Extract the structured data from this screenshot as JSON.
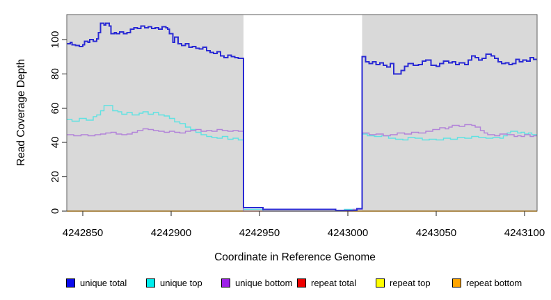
{
  "page_background": "#ffffff",
  "chart_data": {
    "type": "line",
    "style": "step-after",
    "title": "",
    "xlabel": "Coordinate in Reference Genome",
    "ylabel": "Read Coverage Depth",
    "xlim": [
      4242841,
      4243107
    ],
    "ylim": [
      0,
      114.6
    ],
    "x_tick_values": [
      4242850,
      4242900,
      4242950,
      4243000,
      4243050,
      4243100
    ],
    "x_tick_labels": [
      "4242850",
      "4242900",
      "4242950",
      "4243000",
      "4243050",
      "4243100"
    ],
    "y_tick_values": [
      0,
      20,
      40,
      60,
      80,
      100
    ],
    "y_tick_labels": [
      "0",
      "20",
      "40",
      "60",
      "80",
      "100"
    ],
    "grid": false,
    "plot_background": "#d9d9d9",
    "gap_region": {
      "x_start": 4242941,
      "x_end": 4243008,
      "color": "#ffffff"
    },
    "legend_position": "bottom",
    "legend": [
      {
        "label": "unique total",
        "color": "#0b0bee"
      },
      {
        "label": "unique top",
        "color": "#00eeee"
      },
      {
        "label": "unique bottom",
        "color": "#9d1fe8"
      },
      {
        "label": "repeat total",
        "color": "#ee0000"
      },
      {
        "label": "repeat top",
        "color": "#ffff00"
      },
      {
        "label": "repeat bottom",
        "color": "#ffa500"
      }
    ],
    "draw_order": [
      "repeat total",
      "repeat top",
      "repeat bottom",
      "unique top",
      "unique bottom",
      "unique total"
    ],
    "series": [
      {
        "name": "unique total",
        "color": "#2a2ad4",
        "width": 2,
        "points": [
          [
            4242841,
            97.5
          ],
          [
            4242843,
            98.5
          ],
          [
            4242844,
            97
          ],
          [
            4242846,
            96.5
          ],
          [
            4242848,
            96
          ],
          [
            4242850,
            97
          ],
          [
            4242851,
            99
          ],
          [
            4242853,
            98.5
          ],
          [
            4242854,
            100
          ],
          [
            4242856,
            99
          ],
          [
            4242858,
            100.5
          ],
          [
            4242859,
            104
          ],
          [
            4242860,
            109.5
          ],
          [
            4242862,
            108.5
          ],
          [
            4242863,
            109.5
          ],
          [
            4242865,
            108
          ],
          [
            4242866,
            103.5
          ],
          [
            4242868,
            104
          ],
          [
            4242869,
            103.5
          ],
          [
            4242871,
            104.5
          ],
          [
            4242873,
            103.5
          ],
          [
            4242875,
            104
          ],
          [
            4242877,
            106
          ],
          [
            4242879,
            107
          ],
          [
            4242881,
            106.5
          ],
          [
            4242883,
            108
          ],
          [
            4242885,
            107
          ],
          [
            4242887,
            107.5
          ],
          [
            4242889,
            106.5
          ],
          [
            4242891,
            107
          ],
          [
            4242893,
            106
          ],
          [
            4242895,
            107.5
          ],
          [
            4242897,
            107
          ],
          [
            4242898,
            106
          ],
          [
            4242899,
            103.5
          ],
          [
            4242901,
            98.5
          ],
          [
            4242902,
            101.5
          ],
          [
            4242904,
            97.5
          ],
          [
            4242906,
            96.5
          ],
          [
            4242908,
            97.5
          ],
          [
            4242910,
            95.5
          ],
          [
            4242912,
            96
          ],
          [
            4242914,
            95
          ],
          [
            4242916,
            94.5
          ],
          [
            4242918,
            95.5
          ],
          [
            4242920,
            93.5
          ],
          [
            4242922,
            92.5
          ],
          [
            4242924,
            92
          ],
          [
            4242926,
            93
          ],
          [
            4242928,
            90.5
          ],
          [
            4242930,
            89.5
          ],
          [
            4242932,
            91
          ],
          [
            4242934,
            90
          ],
          [
            4242936,
            89.5
          ],
          [
            4242938,
            89
          ],
          [
            4242941,
            2
          ],
          [
            4242952,
            1
          ],
          [
            4242993,
            0.5
          ],
          [
            4243005,
            1.5
          ],
          [
            4243008,
            90
          ],
          [
            4243010,
            87
          ],
          [
            4243012,
            86
          ],
          [
            4243014,
            87
          ],
          [
            4243016,
            85.5
          ],
          [
            4243018,
            86.5
          ],
          [
            4243020,
            85
          ],
          [
            4243022,
            84
          ],
          [
            4243024,
            86
          ],
          [
            4243026,
            80
          ],
          [
            4243030,
            82
          ],
          [
            4243032,
            84.5
          ],
          [
            4243034,
            86
          ],
          [
            4243037,
            85
          ],
          [
            4243040,
            85.5
          ],
          [
            4243042,
            87.5
          ],
          [
            4243044,
            88
          ],
          [
            4243047,
            85
          ],
          [
            4243050,
            84.5
          ],
          [
            4243052,
            86
          ],
          [
            4243054,
            87.5
          ],
          [
            4243057,
            86.5
          ],
          [
            4243059,
            87
          ],
          [
            4243061,
            85.5
          ],
          [
            4243063,
            86.5
          ],
          [
            4243066,
            85.5
          ],
          [
            4243068,
            88
          ],
          [
            4243070,
            90.5
          ],
          [
            4243072,
            89.5
          ],
          [
            4243074,
            88
          ],
          [
            4243076,
            89
          ],
          [
            4243078,
            91.5
          ],
          [
            4243081,
            90.5
          ],
          [
            4243083,
            89
          ],
          [
            4243085,
            87
          ],
          [
            4243087,
            86
          ],
          [
            4243089,
            86.5
          ],
          [
            4243091,
            85.5
          ],
          [
            4243093,
            86
          ],
          [
            4243095,
            88.5
          ],
          [
            4243097,
            87
          ],
          [
            4243099,
            88
          ],
          [
            4243101,
            87.5
          ],
          [
            4243103,
            89.5
          ],
          [
            4243105,
            88.5
          ],
          [
            4243107,
            88.5
          ]
        ]
      },
      {
        "name": "unique top",
        "color": "#5fe2e2",
        "width": 1.4,
        "points": [
          [
            4242841,
            53.5
          ],
          [
            4242844,
            52.5
          ],
          [
            4242848,
            54
          ],
          [
            4242852,
            53
          ],
          [
            4242856,
            55
          ],
          [
            4242858,
            56
          ],
          [
            4242860,
            58.5
          ],
          [
            4242862,
            61.5
          ],
          [
            4242867,
            58.5
          ],
          [
            4242870,
            58
          ],
          [
            4242872,
            56.5
          ],
          [
            4242875,
            57.5
          ],
          [
            4242878,
            56
          ],
          [
            4242882,
            57
          ],
          [
            4242884,
            58
          ],
          [
            4242887,
            56.5
          ],
          [
            4242890,
            57.5
          ],
          [
            4242893,
            56
          ],
          [
            4242896,
            55.5
          ],
          [
            4242899,
            54
          ],
          [
            4242902,
            52
          ],
          [
            4242905,
            51
          ],
          [
            4242908,
            49
          ],
          [
            4242911,
            47.5
          ],
          [
            4242914,
            46
          ],
          [
            4242917,
            44.5
          ],
          [
            4242920,
            43.5
          ],
          [
            4242923,
            43
          ],
          [
            4242926,
            42.5
          ],
          [
            4242929,
            43.5
          ],
          [
            4242932,
            42
          ],
          [
            4242935,
            42.5
          ],
          [
            4242938,
            41.5
          ],
          [
            4242941,
            1
          ],
          [
            4242952,
            0
          ],
          [
            4242998,
            1
          ],
          [
            4243008,
            45
          ],
          [
            4243011,
            44
          ],
          [
            4243015,
            43.5
          ],
          [
            4243019,
            44
          ],
          [
            4243023,
            42.5
          ],
          [
            4243027,
            42
          ],
          [
            4243031,
            41.5
          ],
          [
            4243034,
            43
          ],
          [
            4243038,
            42.5
          ],
          [
            4243042,
            41.5
          ],
          [
            4243046,
            42
          ],
          [
            4243050,
            41.5
          ],
          [
            4243054,
            42.5
          ],
          [
            4243058,
            42
          ],
          [
            4243062,
            43
          ],
          [
            4243066,
            42.5
          ],
          [
            4243070,
            43.5
          ],
          [
            4243074,
            43
          ],
          [
            4243078,
            42.5
          ],
          [
            4243082,
            43
          ],
          [
            4243086,
            42.5
          ],
          [
            4243088,
            44
          ],
          [
            4243090,
            45.5
          ],
          [
            4243092,
            46.5
          ],
          [
            4243096,
            45.5
          ],
          [
            4243098,
            46
          ],
          [
            4243100,
            45
          ],
          [
            4243102,
            45.5
          ],
          [
            4243104,
            44.5
          ],
          [
            4243107,
            44.5
          ]
        ]
      },
      {
        "name": "unique bottom",
        "color": "#b283d9",
        "width": 1.4,
        "points": [
          [
            4242841,
            44.5
          ],
          [
            4242845,
            44
          ],
          [
            4242849,
            44.5
          ],
          [
            4242853,
            44
          ],
          [
            4242857,
            44.5
          ],
          [
            4242860,
            45
          ],
          [
            4242863,
            45.5
          ],
          [
            4242866,
            46
          ],
          [
            4242869,
            45
          ],
          [
            4242872,
            44.5
          ],
          [
            4242875,
            45
          ],
          [
            4242878,
            46
          ],
          [
            4242881,
            47
          ],
          [
            4242884,
            48
          ],
          [
            4242887,
            47.5
          ],
          [
            4242890,
            47
          ],
          [
            4242893,
            46.5
          ],
          [
            4242896,
            46
          ],
          [
            4242899,
            46.5
          ],
          [
            4242902,
            46
          ],
          [
            4242905,
            45.5
          ],
          [
            4242908,
            46.5
          ],
          [
            4242911,
            47
          ],
          [
            4242914,
            47.5
          ],
          [
            4242917,
            46.5
          ],
          [
            4242920,
            47
          ],
          [
            4242923,
            46.5
          ],
          [
            4242926,
            47.5
          ],
          [
            4242929,
            47
          ],
          [
            4242932,
            46.5
          ],
          [
            4242935,
            47
          ],
          [
            4242938,
            46.5
          ],
          [
            4242941,
            0
          ],
          [
            4243003,
            1
          ],
          [
            4243008,
            45.5
          ],
          [
            4243012,
            44.5
          ],
          [
            4243016,
            45
          ],
          [
            4243020,
            44
          ],
          [
            4243024,
            44.5
          ],
          [
            4243028,
            45.5
          ],
          [
            4243032,
            45
          ],
          [
            4243036,
            46
          ],
          [
            4243040,
            45.5
          ],
          [
            4243044,
            46.5
          ],
          [
            4243048,
            47.5
          ],
          [
            4243052,
            48.5
          ],
          [
            4243055,
            48
          ],
          [
            4243057,
            49
          ],
          [
            4243059,
            50
          ],
          [
            4243063,
            49.5
          ],
          [
            4243066,
            50.5
          ],
          [
            4243070,
            50
          ],
          [
            4243072,
            49
          ],
          [
            4243075,
            47
          ],
          [
            4243077,
            45.5
          ],
          [
            4243079,
            44.5
          ],
          [
            4243083,
            44
          ],
          [
            4243086,
            45
          ],
          [
            4243090,
            44.5
          ],
          [
            4243094,
            43.5
          ],
          [
            4243096,
            44
          ],
          [
            4243098,
            43.5
          ],
          [
            4243100,
            44.5
          ],
          [
            4243103,
            43.5
          ],
          [
            4243105,
            44
          ],
          [
            4243107,
            44
          ]
        ]
      },
      {
        "name": "repeat total",
        "color": "#ee0000",
        "width": 1,
        "points": [
          [
            4242841,
            0
          ],
          [
            4243107,
            0
          ]
        ]
      },
      {
        "name": "repeat top",
        "color": "#ffff00",
        "width": 1,
        "points": [
          [
            4242841,
            0
          ],
          [
            4243107,
            0
          ]
        ]
      },
      {
        "name": "repeat bottom",
        "color": "#ffa500",
        "width": 1.8,
        "points": [
          [
            4242841,
            0
          ],
          [
            4243107,
            0
          ]
        ]
      }
    ]
  }
}
